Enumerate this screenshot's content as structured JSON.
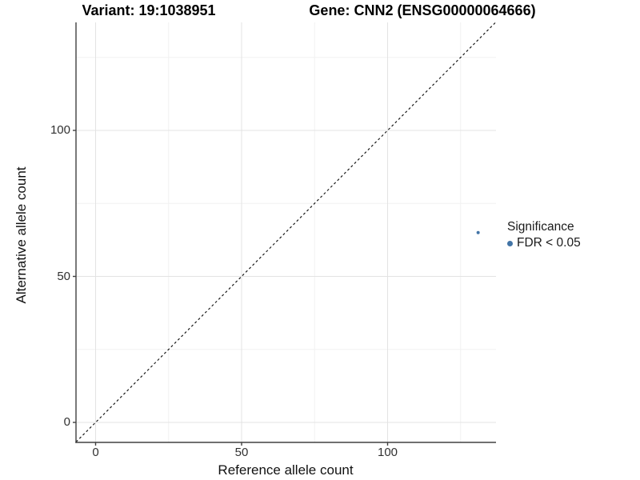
{
  "titles": {
    "variant": "Variant: 19:1038951",
    "gene": "Gene: CNN2 (ENSG00000064666)"
  },
  "chart_data": {
    "type": "scatter",
    "xlabel": "Reference allele count",
    "ylabel": "Alternative allele count",
    "xlim": [
      -6.7,
      137
    ],
    "ylim": [
      -6.9,
      137
    ],
    "xticks": [
      0,
      50,
      100
    ],
    "yticks": [
      0,
      50,
      100
    ],
    "minor_ticks": [
      25,
      75,
      125
    ],
    "grid": true,
    "grid_major_color": "#e3e3e3",
    "grid_minor_color": "#f1f1f1",
    "axis_line_color": "#404040",
    "identity_line": {
      "equation": "y = x",
      "style": "dashed",
      "color": "#1a1a1a"
    },
    "series": [
      {
        "name": "FDR < 0.05",
        "color": "#4274a6",
        "points": [
          {
            "x": 131,
            "y": 65
          }
        ],
        "point_radius": 2
      }
    ],
    "legend": {
      "position": "right",
      "title": "Significance",
      "entries": [
        {
          "label": "FDR < 0.05",
          "color": "#4274a6"
        }
      ]
    }
  }
}
